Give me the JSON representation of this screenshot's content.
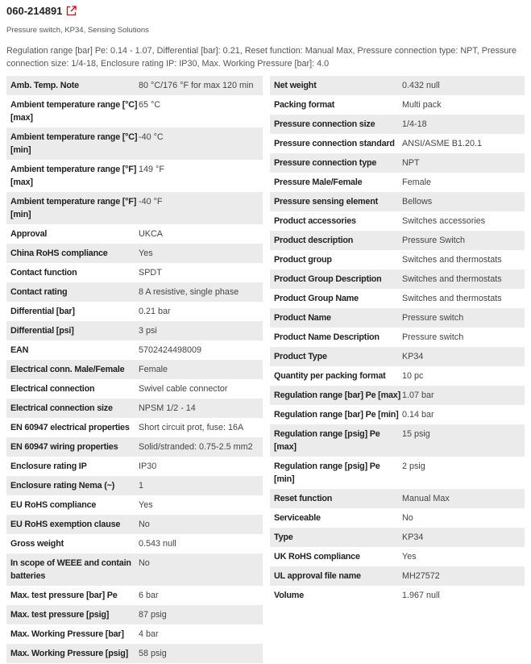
{
  "header": {
    "title": "060-214891",
    "subtitle": "Pressure switch, KP34, Sensing Solutions",
    "description": "Regulation range [bar] Pe: 0.14 - 1.07, Differential [bar]: 0.21, Reset function: Manual Max, Pressure connection type: NPT, Pressure connection size: 1/4-18, Enclosure rating IP: IP30, Max. Working Pressure [bar]: 4.0",
    "link_icon": "external-link-icon",
    "accent": "#e2000f"
  },
  "left": [
    [
      "Amb. Temp. Note",
      "80 °C/176 °F for max 120 min"
    ],
    [
      "Ambient temperature range [°C] [max]",
      "65 °C"
    ],
    [
      "Ambient temperature range [°C] [min]",
      "-40 °C"
    ],
    [
      "Ambient temperature range [°F] [max]",
      "149 °F"
    ],
    [
      "Ambient temperature range [°F] [min]",
      "-40 °F"
    ],
    [
      "Approval",
      "UKCA"
    ],
    [
      "China RoHS compliance",
      "Yes"
    ],
    [
      "Contact function",
      "SPDT"
    ],
    [
      "Contact rating",
      "8 A resistive, single phase"
    ],
    [
      "Differential [bar]",
      "0.21 bar"
    ],
    [
      "Differential [psi]",
      "3 psi"
    ],
    [
      "EAN",
      "5702424498009"
    ],
    [
      "Electrical conn. Male/Female",
      "Female"
    ],
    [
      "Electrical connection",
      "Swivel cable connector"
    ],
    [
      "Electrical connection size",
      "NPSM 1/2 - 14"
    ],
    [
      "EN 60947 electrical properties",
      "Short circuit prot, fuse: 16A"
    ],
    [
      "EN 60947 wiring properties",
      "Solid/stranded: 0.75-2.5 mm2"
    ],
    [
      "Enclosure rating IP",
      "IP30"
    ],
    [
      "Enclosure rating Nema (~)",
      "1"
    ],
    [
      "EU RoHS compliance",
      "Yes"
    ],
    [
      "EU RoHS exemption clause",
      "No"
    ],
    [
      "Gross weight",
      "0.543 null"
    ],
    [
      "In scope of WEEE and contain batteries",
      "No"
    ],
    [
      "Max. test pressure [bar] Pe",
      "6 bar"
    ],
    [
      "Max. test pressure [psig]",
      "87 psig"
    ],
    [
      "Max. Working Pressure [bar]",
      "4 bar"
    ],
    [
      "Max. Working Pressure [psig]",
      "58 psig"
    ]
  ],
  "right": [
    [
      "Net weight",
      "0.432 null"
    ],
    [
      "Packing format",
      "Multi pack"
    ],
    [
      "Pressure connection size",
      "1/4-18"
    ],
    [
      "Pressure connection standard",
      "ANSI/ASME B1.20.1"
    ],
    [
      "Pressure connection type",
      "NPT"
    ],
    [
      "Pressure Male/Female",
      "Female"
    ],
    [
      "Pressure sensing element",
      "Bellows"
    ],
    [
      "Product accessories",
      "Switches accessories"
    ],
    [
      "Product description",
      "Pressure Switch"
    ],
    [
      "Product group",
      "Switches and thermostats"
    ],
    [
      "Product Group Description",
      "Switches and thermostats"
    ],
    [
      "Product Group Name",
      "Switches and thermostats"
    ],
    [
      "Product Name",
      "Pressure switch"
    ],
    [
      "Product Name Description",
      "Pressure switch"
    ],
    [
      "Product Type",
      "KP34"
    ],
    [
      "Quantity per packing format",
      "10 pc"
    ],
    [
      "Regulation range [bar] Pe [max]",
      "1.07 bar"
    ],
    [
      "Regulation range [bar] Pe [min]",
      "0.14 bar"
    ],
    [
      "Regulation range [psig] Pe [max]",
      "15 psig"
    ],
    [
      "Regulation range [psig] Pe [min]",
      "2 psig"
    ],
    [
      "Reset function",
      "Manual Max"
    ],
    [
      "Serviceable",
      "No"
    ],
    [
      "Type",
      "KP34"
    ],
    [
      "UK RoHS compliance",
      "Yes"
    ],
    [
      "UL approval file name",
      "MH27572"
    ],
    [
      "Volume",
      "1.967 null"
    ]
  ]
}
